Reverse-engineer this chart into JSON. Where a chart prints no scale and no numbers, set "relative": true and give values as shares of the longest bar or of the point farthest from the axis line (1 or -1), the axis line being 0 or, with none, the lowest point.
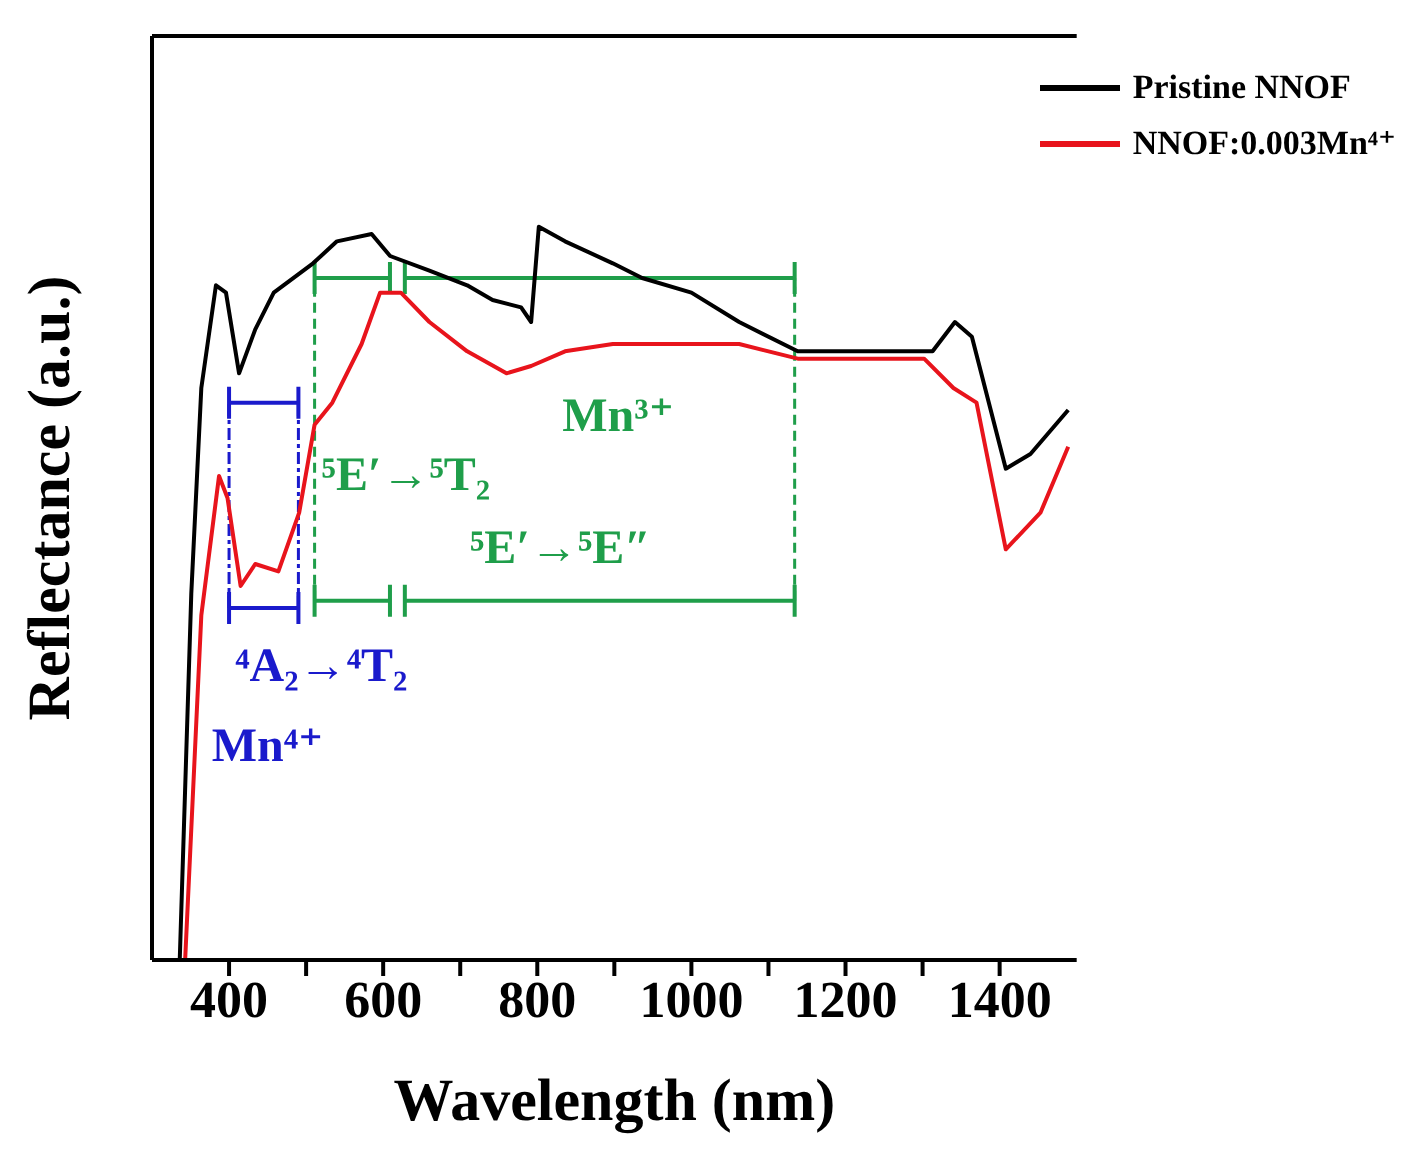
{
  "chart_data": {
    "type": "line",
    "xlabel": "Wavelength (nm)",
    "ylabel": "Reflectance (a.u.)",
    "relative": true,
    "legend": "top right",
    "grid": false,
    "xlim": [
      300,
      1500
    ],
    "xticks": [
      400,
      {
        "value": 500,
        "label": null
      },
      600,
      {
        "value": 700,
        "label": null
      },
      800,
      {
        "value": 900,
        "label": null
      },
      1000,
      {
        "value": 1100,
        "label": null
      },
      1200,
      {
        "value": 1300,
        "label": null
      },
      1400
    ],
    "series": [
      {
        "name": "Pristine NNOF",
        "color": "#000000",
        "x": [
          336,
          351,
          364,
          383,
          396,
          413,
          434,
          458,
          509,
          540,
          585,
          609,
          660,
          709,
          742,
          779,
          792,
          802,
          836,
          898,
          936,
          1000,
          1062,
          1138,
          1219,
          1313,
          1342,
          1364,
          1408,
          1440,
          1489
        ],
        "values": [
          0,
          0.5,
          0.78,
          0.92,
          0.91,
          0.8,
          0.86,
          0.91,
          0.95,
          0.98,
          0.99,
          0.96,
          0.94,
          0.92,
          0.9,
          0.89,
          0.87,
          1,
          0.98,
          0.95,
          0.93,
          0.91,
          0.87,
          0.83,
          0.83,
          0.83,
          0.87,
          0.85,
          0.67,
          0.69,
          0.75
        ]
      },
      {
        "name": "NNOF:0.003Mn⁴⁺",
        "color": "#e8141c",
        "x": [
          343,
          364,
          387,
          398,
          415,
          434,
          464,
          491,
          511,
          534,
          572,
          596,
          623,
          660,
          709,
          760,
          792,
          836,
          898,
          936,
          1062,
          1138,
          1302,
          1340,
          1370,
          1408,
          1453,
          1489
        ],
        "values": [
          0,
          0.47,
          0.66,
          0.63,
          0.51,
          0.54,
          0.53,
          0.61,
          0.73,
          0.76,
          0.84,
          0.91,
          0.91,
          0.87,
          0.83,
          0.8,
          0.81,
          0.83,
          0.84,
          0.84,
          0.84,
          0.82,
          0.82,
          0.78,
          0.76,
          0.56,
          0.61,
          0.7
        ]
      }
    ],
    "ref_lines": [
      {
        "axis": "x",
        "value": 400,
        "color": "#1a1acc",
        "line_style": "dashed"
      },
      {
        "axis": "x",
        "value": 490,
        "color": "#1a1acc",
        "line_style": "dashed"
      },
      {
        "axis": "x",
        "value": 511,
        "color": "#1f9e4a",
        "line_style": "dashed"
      },
      {
        "axis": "x",
        "value": 1134,
        "color": "#1f9e4a",
        "line_style": "dashed"
      }
    ],
    "annotations": [
      "⁴A₂→⁴T₂",
      "Mn⁴⁺",
      "⁵E′→⁵T₂",
      "⁵E′→⁵E″",
      "Mn³⁺"
    ]
  }
}
